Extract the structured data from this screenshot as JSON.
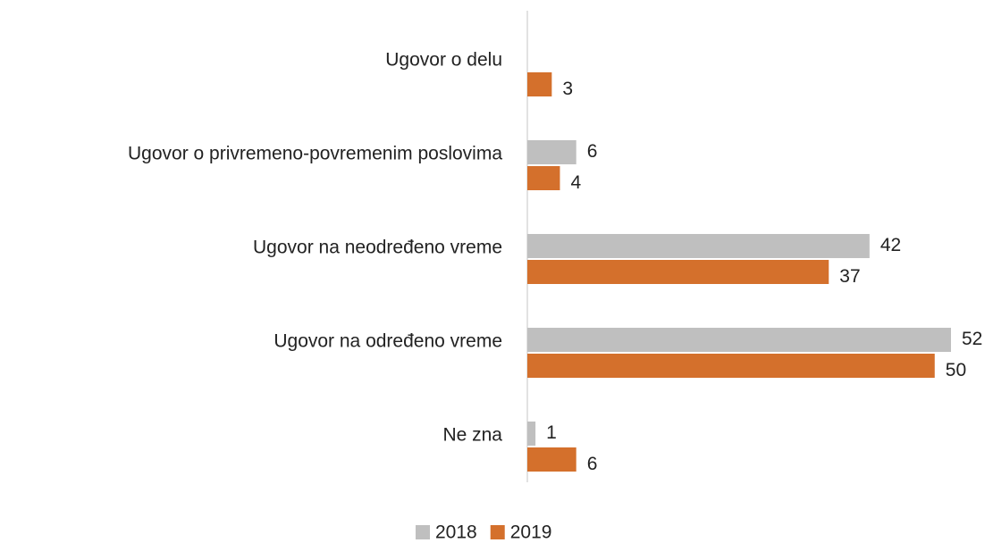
{
  "chart_data": {
    "type": "barh",
    "categories": [
      "Ugovor o delu",
      "Ugovor o privremeno-povremenim poslovima",
      "Ugovor na neodređeno vreme",
      "Ugovor na određeno vreme",
      "Ne zna"
    ],
    "series": [
      {
        "name": "2018",
        "color": "#bfbfbf",
        "values": [
          null,
          6,
          42,
          52,
          1
        ]
      },
      {
        "name": "2019",
        "color": "#d4702c",
        "values": [
          3,
          4,
          37,
          50,
          6
        ]
      }
    ]
  }
}
